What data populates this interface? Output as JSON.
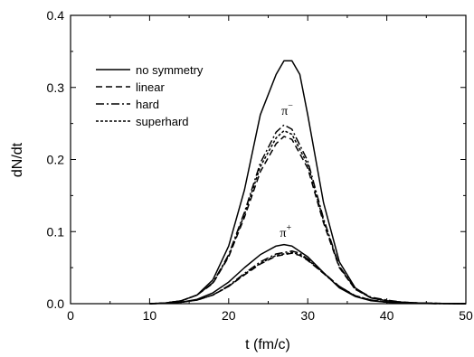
{
  "chart_data": {
    "type": "line",
    "xlabel": "t (fm/c)",
    "ylabel": "dN/dt",
    "xlim": [
      0,
      50
    ],
    "ylim": [
      0,
      0.4
    ],
    "xticks": [
      0,
      10,
      20,
      30,
      40,
      50
    ],
    "xtick_labels": [
      "0",
      "10",
      "20",
      "30",
      "40",
      "50"
    ],
    "yticks": [
      0.0,
      0.1,
      0.2,
      0.3,
      0.4
    ],
    "ytick_labels": [
      "0.0",
      "0.1",
      "0.2",
      "0.3",
      "0.4"
    ],
    "grid": false,
    "legend_position": "top-left",
    "annotations": [
      {
        "text": "π",
        "superscript": "−",
        "x": 27.4,
        "y": 0.262
      },
      {
        "text": "π",
        "superscript": "+",
        "x": 27.2,
        "y": 0.093
      }
    ],
    "series": [
      {
        "name": "no symmetry",
        "dash": "solid",
        "curves": [
          {
            "group": "π−",
            "x": [
              10,
              12,
              14,
              16,
              18,
              20,
              22,
              24,
              26,
              27,
              28,
              29,
              30,
              32,
              34,
              36,
              38,
              40,
              42,
              44,
              46,
              48,
              50
            ],
            "y": [
              0,
              0.001,
              0.004,
              0.012,
              0.033,
              0.08,
              0.158,
              0.262,
              0.318,
              0.337,
              0.337,
              0.318,
              0.262,
              0.14,
              0.058,
              0.022,
              0.008,
              0.004,
              0.002,
              0.001,
              0.0005,
              0.0002,
              0
            ]
          },
          {
            "group": "π+",
            "x": [
              10,
              12,
              14,
              16,
              18,
              20,
              22,
              24,
              26,
              27,
              28,
              30,
              32,
              34,
              36,
              38,
              40,
              42,
              44,
              46,
              48,
              50
            ],
            "y": [
              0,
              0.0005,
              0.002,
              0.006,
              0.015,
              0.03,
              0.05,
              0.068,
              0.08,
              0.082,
              0.08,
              0.065,
              0.043,
              0.022,
              0.01,
              0.004,
              0.002,
              0.001,
              0.0005,
              0.0002,
              0.0001,
              0
            ]
          }
        ]
      },
      {
        "name": "linear",
        "dash": "dashed",
        "curves": [
          {
            "group": "π−",
            "x": [
              10,
              12,
              14,
              16,
              18,
              20,
              22,
              24,
              26,
              27,
              28,
              30,
              32,
              34,
              36,
              38,
              40,
              42,
              44,
              46,
              48,
              50
            ],
            "y": [
              0,
              0.001,
              0.004,
              0.012,
              0.028,
              0.065,
              0.12,
              0.183,
              0.222,
              0.232,
              0.228,
              0.188,
              0.112,
              0.05,
              0.02,
              0.008,
              0.004,
              0.002,
              0.001,
              0.0005,
              0.0002,
              0
            ]
          },
          {
            "group": "π+",
            "x": [
              10,
              12,
              14,
              16,
              18,
              20,
              22,
              24,
              26,
              28,
              29,
              30,
              32,
              34,
              36,
              38,
              40,
              42,
              44,
              46,
              48,
              50
            ],
            "y": [
              0,
              0.0005,
              0.002,
              0.005,
              0.012,
              0.024,
              0.04,
              0.055,
              0.066,
              0.07,
              0.067,
              0.06,
              0.042,
              0.024,
              0.011,
              0.005,
              0.002,
              0.001,
              0.0005,
              0.0002,
              0.0001,
              0
            ]
          }
        ]
      },
      {
        "name": "hard",
        "dash": "dashdot",
        "curves": [
          {
            "group": "π−",
            "x": [
              10,
              12,
              14,
              16,
              18,
              20,
              22,
              24,
              26,
              27,
              28,
              30,
              32,
              34,
              36,
              38,
              40,
              42,
              44,
              46,
              48,
              50
            ],
            "y": [
              0,
              0.001,
              0.004,
              0.012,
              0.029,
              0.068,
              0.127,
              0.195,
              0.238,
              0.248,
              0.242,
              0.198,
              0.118,
              0.052,
              0.021,
              0.009,
              0.005,
              0.002,
              0.001,
              0.0005,
              0.0002,
              0
            ]
          },
          {
            "group": "π+",
            "x": [
              10,
              12,
              14,
              16,
              18,
              20,
              22,
              24,
              26,
              28,
              29,
              30,
              32,
              34,
              36,
              38,
              40,
              42,
              44,
              46,
              48,
              50
            ],
            "y": [
              0,
              0.0005,
              0.002,
              0.005,
              0.012,
              0.025,
              0.042,
              0.058,
              0.069,
              0.073,
              0.07,
              0.062,
              0.043,
              0.024,
              0.011,
              0.005,
              0.002,
              0.001,
              0.0005,
              0.0002,
              0.0001,
              0
            ]
          }
        ]
      },
      {
        "name": "superhard",
        "dash": "dotted",
        "curves": [
          {
            "group": "π−",
            "x": [
              10,
              12,
              14,
              16,
              18,
              20,
              22,
              24,
              26,
              27,
              28,
              30,
              32,
              34,
              36,
              38,
              40,
              42,
              44,
              46,
              48,
              50
            ],
            "y": [
              0,
              0.001,
              0.004,
              0.012,
              0.029,
              0.066,
              0.124,
              0.19,
              0.23,
              0.24,
              0.235,
              0.193,
              0.115,
              0.051,
              0.02,
              0.008,
              0.004,
              0.002,
              0.001,
              0.0005,
              0.0002,
              0
            ]
          },
          {
            "group": "π+",
            "x": [
              10,
              12,
              14,
              16,
              18,
              20,
              22,
              24,
              26,
              28,
              29,
              30,
              32,
              34,
              36,
              38,
              40,
              42,
              44,
              46,
              48,
              50
            ],
            "y": [
              0,
              0.0005,
              0.002,
              0.005,
              0.012,
              0.024,
              0.041,
              0.056,
              0.067,
              0.071,
              0.068,
              0.061,
              0.042,
              0.023,
              0.011,
              0.005,
              0.002,
              0.001,
              0.0005,
              0.0002,
              0.0001,
              0
            ]
          }
        ]
      }
    ]
  }
}
